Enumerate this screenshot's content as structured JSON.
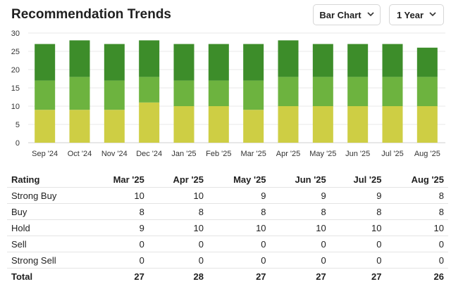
{
  "header": {
    "title": "Recommendation Trends",
    "chart_type_select": "Bar Chart",
    "range_select": "1 Year"
  },
  "colors": {
    "strong_buy": "#3d8d2a",
    "buy": "#6db33f",
    "hold": "#cece44"
  },
  "chart_data": {
    "type": "bar",
    "stacked": true,
    "categories": [
      "Sep '24",
      "Oct '24",
      "Nov '24",
      "Dec '24",
      "Jan '25",
      "Feb '25",
      "Mar '25",
      "Apr '25",
      "May '25",
      "Jun '25",
      "Jul '25",
      "Aug '25"
    ],
    "series": [
      {
        "name": "Hold",
        "values": [
          9,
          9,
          9,
          11,
          10,
          10,
          9,
          10,
          10,
          10,
          10,
          10
        ]
      },
      {
        "name": "Buy",
        "values": [
          8,
          9,
          8,
          7,
          7,
          7,
          8,
          8,
          8,
          8,
          8,
          8
        ]
      },
      {
        "name": "Strong Buy",
        "values": [
          10,
          10,
          10,
          10,
          10,
          10,
          10,
          10,
          9,
          9,
          9,
          8
        ]
      }
    ],
    "yticks": [
      0,
      5,
      10,
      15,
      20,
      25,
      30
    ],
    "ylim": [
      0,
      30
    ],
    "grid": true
  },
  "table": {
    "headers": [
      "Rating",
      "Mar '25",
      "Apr '25",
      "May '25",
      "Jun '25",
      "Jul '25",
      "Aug '25"
    ],
    "rows": [
      [
        "Strong Buy",
        "10",
        "10",
        "9",
        "9",
        "9",
        "8"
      ],
      [
        "Buy",
        "8",
        "8",
        "8",
        "8",
        "8",
        "8"
      ],
      [
        "Hold",
        "9",
        "10",
        "10",
        "10",
        "10",
        "10"
      ],
      [
        "Sell",
        "0",
        "0",
        "0",
        "0",
        "0",
        "0"
      ],
      [
        "Strong Sell",
        "0",
        "0",
        "0",
        "0",
        "0",
        "0"
      ]
    ],
    "total": [
      "Total",
      "27",
      "28",
      "27",
      "27",
      "27",
      "26"
    ]
  }
}
